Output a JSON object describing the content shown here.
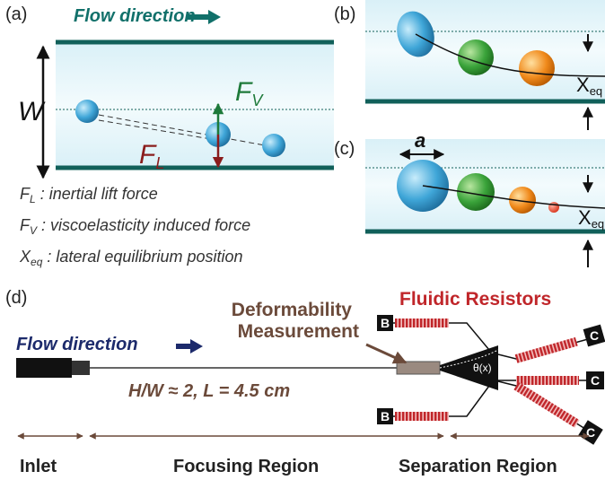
{
  "panel_a": {
    "label": "(a)",
    "flow": "Flow direction",
    "width_symbol": "W",
    "fv": {
      "main": "F",
      "sub": "V"
    },
    "fl": {
      "main": "F",
      "sub": "L"
    },
    "legend": [
      {
        "main": "F",
        "sub": "L",
        "text": " : inertial lift force"
      },
      {
        "main": "F",
        "sub": "V",
        "text": " : viscoelasticity induced force"
      },
      {
        "main": "X",
        "sub": "eq",
        "text": " : lateral equilibrium position"
      }
    ]
  },
  "panel_b": {
    "label": "(b)",
    "xeq": {
      "main": "X",
      "sub": "eq"
    }
  },
  "panel_c": {
    "label": "(c)",
    "size_symbol": "a",
    "xeq": {
      "main": "X",
      "sub": "eq"
    }
  },
  "panel_d": {
    "label": "(d)",
    "flow": "Flow direction",
    "measurement": [
      "Deformability",
      "Measurement"
    ],
    "resistors": "Fluidic Resistors",
    "outlet_b": [
      "B",
      "B"
    ],
    "outlet_c": [
      "C",
      "C",
      "C"
    ],
    "angle": "θ(x)",
    "dimensions": "H/W ≈ 2, L = 4.5 cm",
    "regions": [
      "Inlet",
      "Focusing Region",
      "Separation Region"
    ]
  }
}
